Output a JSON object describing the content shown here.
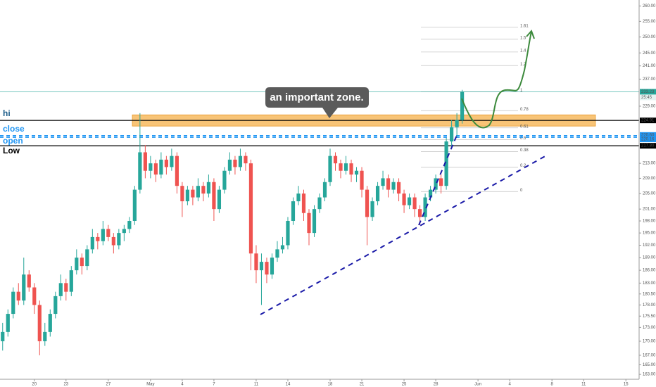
{
  "chart_data": {
    "type": "candlestick",
    "log_scale": true,
    "grid": false,
    "up_color": "#26a69a",
    "down_color": "#ef5350",
    "xlim": [
      -0.5,
      120.5
    ],
    "ylim": [
      162,
      262
    ],
    "xticks": [
      {
        "value": 6,
        "label": "20"
      },
      {
        "value": 12,
        "label": "23"
      },
      {
        "value": 20,
        "label": "27"
      },
      {
        "value": 28,
        "label": "May"
      },
      {
        "value": 34,
        "label": "4"
      },
      {
        "value": 40,
        "label": "7"
      },
      {
        "value": 48,
        "label": "11"
      },
      {
        "value": 54,
        "label": "14"
      },
      {
        "value": 62,
        "label": "18"
      },
      {
        "value": 68,
        "label": "21"
      },
      {
        "value": 76,
        "label": "25"
      },
      {
        "value": 82,
        "label": "28"
      },
      {
        "value": 90,
        "label": "Jun"
      },
      {
        "value": 96,
        "label": "4"
      },
      {
        "value": 104,
        "label": "8"
      },
      {
        "value": 110,
        "label": "11"
      },
      {
        "value": 118,
        "label": "15"
      }
    ],
    "yticks": [
      {
        "value": 260,
        "label": "260.00"
      },
      {
        "value": 255,
        "label": "255.00"
      },
      {
        "value": 250,
        "label": "250.00"
      },
      {
        "value": 245,
        "label": "245.00"
      },
      {
        "value": 241,
        "label": "241.00"
      },
      {
        "value": 237,
        "label": "237.00"
      },
      {
        "value": 229,
        "label": "229.00"
      },
      {
        "value": 213,
        "label": "213.00"
      },
      {
        "value": 209,
        "label": "209.00"
      },
      {
        "value": 205,
        "label": "205.00"
      },
      {
        "value": 201,
        "label": "201.00"
      },
      {
        "value": 198,
        "label": "198.00"
      },
      {
        "value": 195,
        "label": "195.00"
      },
      {
        "value": 192,
        "label": "192.00"
      },
      {
        "value": 189,
        "label": "189.00"
      },
      {
        "value": 186,
        "label": "186.00"
      },
      {
        "value": 183,
        "label": "183.00"
      },
      {
        "value": 180.5,
        "label": "180.50"
      },
      {
        "value": 178,
        "label": "178.00"
      },
      {
        "value": 175.5,
        "label": "175.50"
      },
      {
        "value": 173,
        "label": "173.00"
      },
      {
        "value": 170,
        "label": "170.00"
      },
      {
        "value": 167,
        "label": "167.00"
      },
      {
        "value": 165,
        "label": "165.00"
      },
      {
        "value": 163,
        "label": "163.00"
      }
    ],
    "candles": [
      [
        170,
        174,
        168,
        172
      ],
      [
        172,
        177,
        171,
        176
      ],
      [
        176,
        182,
        175,
        181
      ],
      [
        181,
        183,
        178,
        179
      ],
      [
        179,
        189,
        178,
        185
      ],
      [
        185,
        186,
        181,
        182
      ],
      [
        182,
        183,
        176,
        178
      ],
      [
        178,
        179,
        167,
        170
      ],
      [
        170,
        174,
        169,
        172
      ],
      [
        172,
        177,
        171,
        176
      ],
      [
        176,
        181,
        175,
        180
      ],
      [
        180,
        185,
        179,
        183
      ],
      [
        183,
        184,
        179,
        181
      ],
      [
        181,
        187,
        180,
        186
      ],
      [
        186,
        191,
        185,
        189
      ],
      [
        189,
        190,
        185,
        187
      ],
      [
        187,
        192,
        186,
        191
      ],
      [
        191,
        196,
        190,
        194
      ],
      [
        194,
        195,
        191,
        193
      ],
      [
        193,
        198,
        192,
        196
      ],
      [
        196,
        197,
        193,
        194
      ],
      [
        194,
        195,
        190,
        192
      ],
      [
        192,
        196,
        191,
        195
      ],
      [
        195,
        197,
        193,
        196
      ],
      [
        196,
        199,
        195,
        198
      ],
      [
        198,
        207,
        197,
        206
      ],
      [
        206,
        227,
        205,
        216
      ],
      [
        216,
        218,
        209,
        211
      ],
      [
        211,
        215,
        209,
        213
      ],
      [
        213,
        214,
        208,
        210
      ],
      [
        210,
        216,
        209,
        214
      ],
      [
        214,
        215,
        210,
        212
      ],
      [
        212,
        217,
        211,
        215
      ],
      [
        215,
        216,
        205,
        207
      ],
      [
        207,
        208,
        199,
        203
      ],
      [
        203,
        207,
        202,
        206
      ],
      [
        206,
        207,
        202,
        204
      ],
      [
        204,
        209,
        203,
        207
      ],
      [
        207,
        208,
        203,
        205
      ],
      [
        205,
        210,
        204,
        208
      ],
      [
        208,
        209,
        198,
        201
      ],
      [
        201,
        207,
        200,
        206
      ],
      [
        206,
        212,
        205,
        211
      ],
      [
        211,
        216,
        210,
        214
      ],
      [
        214,
        215,
        210,
        212
      ],
      [
        212,
        217,
        211,
        215
      ],
      [
        215,
        216,
        211,
        213
      ],
      [
        213,
        214,
        186,
        190
      ],
      [
        190,
        192,
        183,
        186
      ],
      [
        186,
        190,
        178,
        188
      ],
      [
        188,
        189,
        183,
        185
      ],
      [
        185,
        190,
        184,
        189
      ],
      [
        189,
        193,
        188,
        191
      ],
      [
        191,
        194,
        190,
        192
      ],
      [
        192,
        199,
        191,
        198
      ],
      [
        198,
        204,
        197,
        203
      ],
      [
        203,
        207,
        202,
        205
      ],
      [
        205,
        206,
        198,
        200
      ],
      [
        200,
        201,
        192,
        195
      ],
      [
        195,
        202,
        194,
        201
      ],
      [
        201,
        205,
        200,
        204
      ],
      [
        204,
        209,
        203,
        208
      ],
      [
        208,
        217,
        207,
        215
      ],
      [
        215,
        216,
        211,
        213
      ],
      [
        213,
        214,
        209,
        211
      ],
      [
        211,
        215,
        210,
        213
      ],
      [
        213,
        214,
        208,
        210
      ],
      [
        210,
        212,
        208,
        211
      ],
      [
        211,
        212,
        204,
        206
      ],
      [
        206,
        207,
        192,
        199
      ],
      [
        199,
        204,
        198,
        203
      ],
      [
        203,
        208,
        202,
        207
      ],
      [
        207,
        211,
        206,
        209
      ],
      [
        209,
        210,
        204,
        206
      ],
      [
        206,
        209,
        205,
        208
      ],
      [
        208,
        209,
        203,
        205
      ],
      [
        205,
        206,
        200,
        202
      ],
      [
        202,
        205,
        201,
        204
      ],
      [
        204,
        205,
        199,
        201
      ],
      [
        201,
        202,
        197,
        199
      ],
      [
        199,
        205,
        198,
        204
      ],
      [
        204,
        207,
        203,
        206
      ],
      [
        206,
        210,
        205,
        209
      ],
      [
        209,
        210,
        205,
        207
      ],
      [
        207,
        220,
        206,
        219
      ],
      [
        219,
        225,
        217,
        223
      ],
      [
        223,
        227,
        220,
        225
      ],
      [
        225,
        233.8,
        224,
        233.23
      ]
    ],
    "countdown": "25:45",
    "levels": [
      {
        "name": "hi",
        "value": 224.91,
        "price_label": "224.91",
        "color": "#000000",
        "dashed": false
      },
      {
        "name": "close",
        "value": 220.6,
        "price_label": "220.60",
        "color": "#2196f3",
        "dashed": true
      },
      {
        "name": "open",
        "value": 220.16,
        "price_label": "220.16",
        "color": "#2196f3",
        "dashed": true
      },
      {
        "name": "Low",
        "value": 217.8,
        "price_label": "217.80",
        "color": "#000000",
        "dashed": false
      }
    ],
    "zone": {
      "top": 226.5,
      "bottom": 223.3,
      "color": "#f5b04a"
    },
    "annotation": "an important zone.",
    "fib_levels": [
      {
        "value": 253.1,
        "label": "1.61"
      },
      {
        "value": 249.3,
        "label": "1.5"
      },
      {
        "value": 245.3,
        "label": "1.4"
      },
      {
        "value": 241.1,
        "label": "1.2"
      },
      {
        "value": 233.2,
        "label": "1"
      },
      {
        "value": 227.7,
        "label": "0.78"
      },
      {
        "value": 222.8,
        "label": "0.61"
      },
      {
        "value": 219.5,
        "label": "0.5"
      },
      {
        "value": 216.2,
        "label": "0.38"
      },
      {
        "value": 212.0,
        "label": "0.2"
      },
      {
        "value": 205.5,
        "label": "0"
      }
    ]
  }
}
